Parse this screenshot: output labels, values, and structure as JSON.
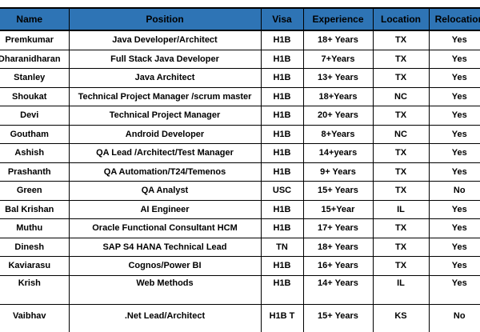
{
  "colors": {
    "header_bg": "#2E74B5",
    "header_text": "#000000",
    "border": "#000000",
    "row_bg": "#FFFFFF",
    "cell_text": "#000000"
  },
  "table": {
    "columns": [
      {
        "key": "name",
        "label": "Name"
      },
      {
        "key": "position",
        "label": "Position"
      },
      {
        "key": "visa",
        "label": "Visa"
      },
      {
        "key": "experience",
        "label": "Experience"
      },
      {
        "key": "location",
        "label": "Location"
      },
      {
        "key": "relocation",
        "label": "Relocation"
      }
    ],
    "rows": [
      {
        "name": "Premkumar",
        "position": "Java Developer/Architect",
        "visa": "H1B",
        "experience": "18+ Years",
        "location": "TX",
        "relocation": "Yes"
      },
      {
        "name": "Dharanidharan",
        "position": "Full Stack Java Developer",
        "visa": "H1B",
        "experience": "7+Years",
        "location": "TX",
        "relocation": "Yes"
      },
      {
        "name": "Stanley",
        "position": "Java Architect",
        "visa": "H1B",
        "experience": "13+ Years",
        "location": "TX",
        "relocation": "Yes"
      },
      {
        "name": "Shoukat",
        "position": "Technical Project Manager /scrum master",
        "visa": "H1B",
        "experience": "18+Years",
        "location": "NC",
        "relocation": "Yes"
      },
      {
        "name": "Devi",
        "position": "Technical Project Manager",
        "visa": "H1B",
        "experience": "20+ Years",
        "location": "TX",
        "relocation": "Yes"
      },
      {
        "name": "Goutham",
        "position": "Android Developer",
        "visa": "H1B",
        "experience": "8+Years",
        "location": "NC",
        "relocation": "Yes"
      },
      {
        "name": "Ashish",
        "position": "QA Lead /Architect/Test Manager",
        "visa": "H1B",
        "experience": "14+years",
        "location": "TX",
        "relocation": "Yes"
      },
      {
        "name": "Prashanth",
        "position": "QA Automation/T24/Temenos",
        "visa": "H1B",
        "experience": "9+ Years",
        "location": "TX",
        "relocation": "Yes"
      },
      {
        "name": "Green",
        "position": "QA Analyst",
        "visa": "USC",
        "experience": "15+ Years",
        "location": "TX",
        "relocation": "No"
      },
      {
        "name": "Bal Krishan",
        "position": "AI Engineer",
        "visa": "H1B",
        "experience": "15+Year",
        "location": "IL",
        "relocation": "Yes"
      },
      {
        "name": "Muthu",
        "position": "Oracle Functional Consultant HCM",
        "visa": "H1B",
        "experience": "17+ Years",
        "location": "TX",
        "relocation": "Yes"
      },
      {
        "name": "Dinesh",
        "position": "SAP S4 HANA Technical Lead",
        "visa": "TN",
        "experience": "18+ Years",
        "location": "TX",
        "relocation": "Yes"
      },
      {
        "name": "Kaviarasu",
        "position": "Cognos/Power BI",
        "visa": "H1B",
        "experience": "16+ Years",
        "location": "TX",
        "relocation": "Yes"
      },
      {
        "name": "Krish",
        "position": "Web Methods",
        "visa": "H1B",
        "experience": "14+ Years",
        "location": "IL",
        "relocation": "Yes"
      },
      {
        "name": "Vaibhav",
        "position": ".Net Lead/Architect",
        "visa": "H1B T",
        "experience": "15+ Years",
        "location": "KS",
        "relocation": "No"
      }
    ]
  }
}
